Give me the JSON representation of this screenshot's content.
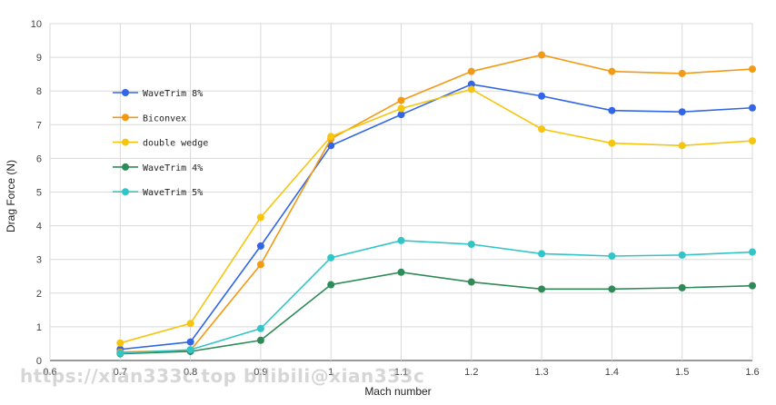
{
  "chart_data": {
    "type": "line",
    "xlabel": "Mach number",
    "ylabel": "Drag Force (N)",
    "xlim": [
      0.6,
      1.6
    ],
    "ylim": [
      0,
      10
    ],
    "xticks": [
      "0.6",
      "0.7",
      "0.8",
      "0.9",
      "1",
      "1.1",
      "1.2",
      "1.3",
      "1.4",
      "1.5",
      "1.6"
    ],
    "yticks": [
      "0",
      "1",
      "2",
      "3",
      "4",
      "5",
      "6",
      "7",
      "8",
      "9",
      "10"
    ],
    "grid": true,
    "legend_position": "left, inside plot",
    "x": [
      0.7,
      0.8,
      0.9,
      1.0,
      1.1,
      1.2,
      1.3,
      1.4,
      1.5,
      1.6
    ],
    "series": [
      {
        "name": "WaveTrim 8%",
        "color": "#3366e6",
        "values": [
          0.33,
          0.55,
          3.4,
          6.38,
          7.3,
          8.2,
          7.85,
          7.42,
          7.38,
          7.5
        ]
      },
      {
        "name": "Biconvex",
        "color": "#f29a14",
        "values": [
          0.25,
          0.3,
          2.85,
          6.58,
          7.72,
          8.58,
          9.07,
          8.58,
          8.52,
          8.65
        ]
      },
      {
        "name": "double wedge",
        "color": "#f6c50e",
        "values": [
          0.52,
          1.1,
          4.25,
          6.65,
          7.48,
          8.05,
          6.87,
          6.45,
          6.38,
          6.52
        ]
      },
      {
        "name": "WaveTrim 4%",
        "color": "#2e8b57",
        "values": [
          0.2,
          0.27,
          0.6,
          2.25,
          2.62,
          2.33,
          2.12,
          2.12,
          2.16,
          2.22
        ]
      },
      {
        "name": "WaveTrim 5%",
        "color": "#33c4c8",
        "values": [
          0.22,
          0.32,
          0.95,
          3.05,
          3.56,
          3.45,
          3.17,
          3.1,
          3.13,
          3.22
        ]
      }
    ]
  },
  "watermark": "https://xian333c.top bilibili@xian333c"
}
